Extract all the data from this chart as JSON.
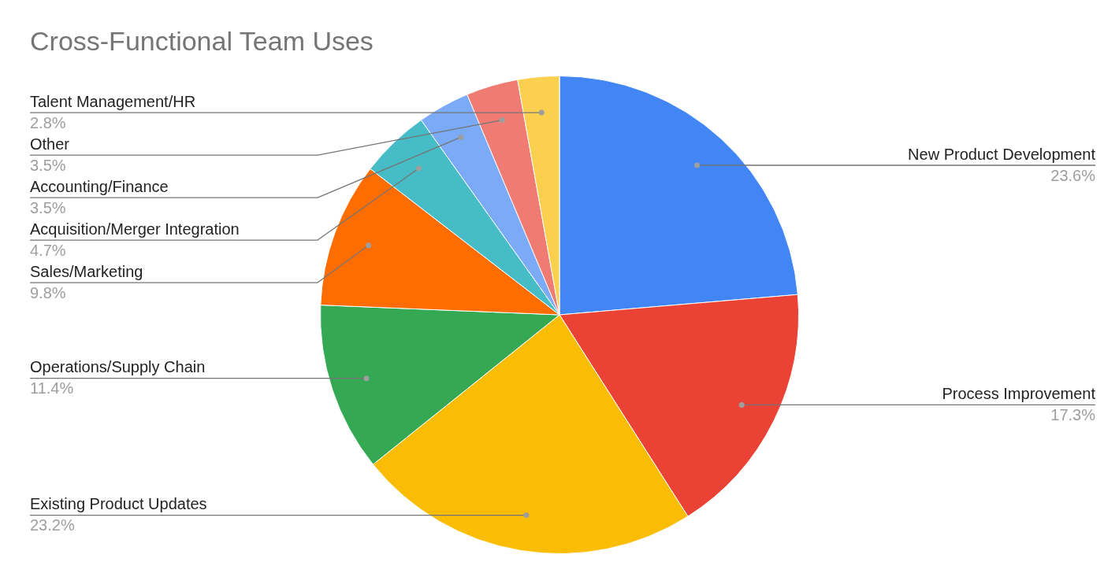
{
  "chart_data": {
    "type": "pie",
    "title": "Cross-Functional Team Uses",
    "categories": [
      "New Product Development",
      "Process Improvement",
      "Existing Product Updates",
      "Operations/Supply Chain",
      "Sales/Marketing",
      "Acquisition/Merger Integration",
      "Accounting/Finance",
      "Other",
      "Talent Management/HR"
    ],
    "values": [
      23.6,
      17.3,
      23.2,
      11.4,
      9.8,
      4.7,
      3.5,
      3.5,
      2.8
    ],
    "value_labels": [
      "23.6%",
      "17.3%",
      "23.2%",
      "11.4%",
      "9.8%",
      "4.7%",
      "3.5%",
      "3.5%",
      "2.8%"
    ],
    "colors": [
      "#4285f4",
      "#ea4335",
      "#fbbc04",
      "#34a853",
      "#ff6d01",
      "#46bdc6",
      "#7baaf7",
      "#f07b72",
      "#fcd04f"
    ],
    "legend": false
  }
}
